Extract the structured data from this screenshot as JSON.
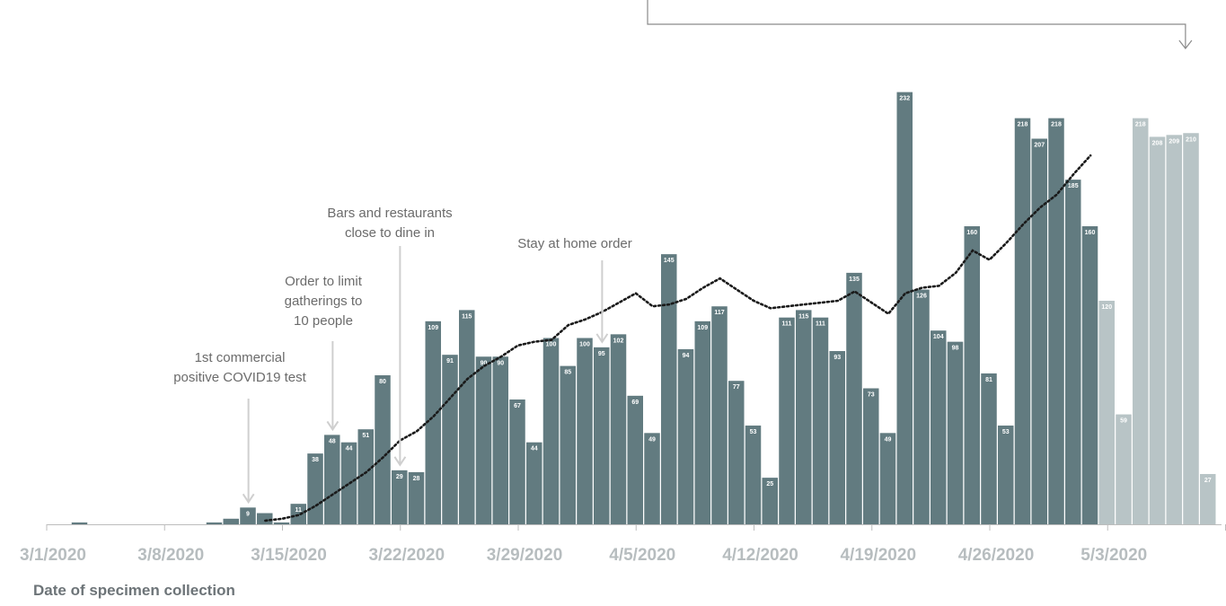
{
  "chart_data": {
    "type": "bar",
    "xlabel": "Date of specimen collection",
    "x_ticks": [
      "3/1/2020",
      "3/8/2020",
      "3/15/2020",
      "3/22/2020",
      "3/29/2020",
      "4/5/2020",
      "4/12/2020",
      "4/19/2020",
      "4/26/2020",
      "5/3/2020"
    ],
    "series": [
      {
        "style": "confirmed",
        "color": "#627b80",
        "dates": [
          "3/2/2020",
          "3/3/2020",
          "3/4/2020",
          "3/5/2020",
          "3/6/2020",
          "3/7/2020",
          "3/8/2020",
          "3/9/2020",
          "3/10/2020",
          "3/11/2020",
          "3/12/2020",
          "3/13/2020",
          "3/14/2020",
          "3/15/2020",
          "3/16/2020",
          "3/17/2020",
          "3/18/2020",
          "3/19/2020",
          "3/20/2020",
          "3/21/2020",
          "3/22/2020",
          "3/23/2020",
          "3/24/2020",
          "3/25/2020",
          "3/26/2020",
          "3/27/2020",
          "3/28/2020",
          "3/29/2020",
          "3/30/2020",
          "3/31/2020",
          "4/1/2020",
          "4/2/2020",
          "4/3/2020",
          "4/4/2020",
          "4/5/2020",
          "4/6/2020",
          "4/7/2020",
          "4/8/2020",
          "4/9/2020",
          "4/10/2020",
          "4/11/2020",
          "4/12/2020",
          "4/13/2020",
          "4/14/2020",
          "4/15/2020",
          "4/16/2020",
          "4/17/2020",
          "4/18/2020",
          "4/19/2020",
          "4/20/2020",
          "4/21/2020",
          "4/22/2020",
          "4/23/2020",
          "4/24/2020",
          "4/25/2020",
          "4/26/2020",
          "4/27/2020",
          "4/28/2020",
          "4/29/2020",
          "4/30/2020",
          "5/1/2020",
          "5/2/2020"
        ],
        "values": [
          1,
          0,
          0,
          0,
          0,
          0,
          0,
          0,
          1,
          3,
          9,
          6,
          1,
          11,
          38,
          48,
          44,
          51,
          80,
          29,
          28,
          109,
          91,
          115,
          90,
          90,
          67,
          44,
          100,
          85,
          100,
          95,
          102,
          69,
          49,
          145,
          94,
          109,
          117,
          77,
          53,
          25,
          111,
          115,
          111,
          93,
          135,
          73,
          49,
          232,
          126,
          104,
          98,
          160,
          81,
          53,
          218,
          207,
          218,
          185,
          160,
          0
        ],
        "labels": [
          "",
          "",
          "",
          "",
          "",
          "",
          "",
          "",
          "",
          "",
          "9",
          "",
          "",
          "11",
          "38",
          "48",
          "44",
          "51",
          "80",
          "29",
          "28",
          "109",
          "91",
          "115",
          "90",
          "90",
          "67",
          "44",
          "100",
          "85",
          "100",
          "95",
          "102",
          "69",
          "49",
          "145",
          "94",
          "109",
          "117",
          "77",
          "53",
          "25",
          "111",
          "115",
          "111",
          "93",
          "135",
          "73",
          "49",
          "232",
          "126",
          "104",
          "98",
          "160",
          "81",
          "53",
          "218",
          "207",
          "218",
          "185",
          "160",
          ""
        ]
      },
      {
        "style": "pending",
        "color": "#b8c4c6",
        "dates": [
          "5/2/2020",
          "5/3/2020",
          "5/4/2020",
          "5/5/2020",
          "5/6/2020",
          "5/7/2020",
          "5/8/2020",
          "5/9/2020"
        ],
        "values": [
          120,
          59,
          218,
          208,
          209,
          210,
          27,
          0
        ],
        "labels": [
          "120",
          "59",
          "218",
          "208",
          "209",
          "210",
          "27",
          ""
        ]
      }
    ],
    "moving_average": {
      "style": "dotted",
      "color": "#1a1a1a",
      "dates": [
        "3/13/2020",
        "3/14/2020",
        "3/15/2020",
        "3/16/2020",
        "3/17/2020",
        "3/18/2020",
        "3/19/2020",
        "3/20/2020",
        "3/21/2020",
        "3/22/2020",
        "3/23/2020",
        "3/24/2020",
        "3/25/2020",
        "3/26/2020",
        "3/27/2020",
        "3/28/2020",
        "3/29/2020",
        "3/30/2020",
        "3/31/2020",
        "4/1/2020",
        "4/2/2020",
        "4/3/2020",
        "4/4/2020",
        "4/5/2020",
        "4/6/2020",
        "4/7/2020",
        "4/8/2020",
        "4/9/2020",
        "4/10/2020",
        "4/11/2020",
        "4/12/2020",
        "4/13/2020",
        "4/14/2020",
        "4/15/2020",
        "4/16/2020",
        "4/17/2020",
        "4/18/2020",
        "4/19/2020",
        "4/20/2020",
        "4/21/2020",
        "4/22/2020",
        "4/23/2020",
        "4/24/2020",
        "4/25/2020",
        "4/26/2020",
        "4/27/2020",
        "4/28/2020",
        "4/29/2020",
        "4/30/2020",
        "5/1/2020"
      ],
      "values": [
        2,
        3,
        5,
        10,
        16,
        22,
        28,
        36,
        45,
        50,
        58,
        68,
        78,
        85,
        90,
        96,
        98,
        99,
        107,
        110,
        114,
        119,
        124,
        117,
        118,
        121,
        127,
        132,
        126,
        120,
        116,
        117,
        118,
        119,
        120,
        125,
        119,
        113,
        124,
        127,
        128,
        135,
        147,
        142,
        151,
        161,
        170,
        177,
        188,
        198
      ]
    },
    "ylim": [
      0,
      240
    ],
    "annotations": [
      {
        "lines": [
          "1st commercial",
          "positive COVID19 test"
        ],
        "date": "3/12/2020"
      },
      {
        "lines": [
          "Order to limit",
          "gatherings to",
          "10 people"
        ],
        "date": "3/17/2020"
      },
      {
        "lines": [
          "Bars and restaurants",
          "close to dine in"
        ],
        "date": "3/21/2020"
      },
      {
        "lines": [
          "Stay at home order"
        ],
        "date": "4/2/2020"
      }
    ],
    "callout_arrow_date": "5/6/2020"
  }
}
